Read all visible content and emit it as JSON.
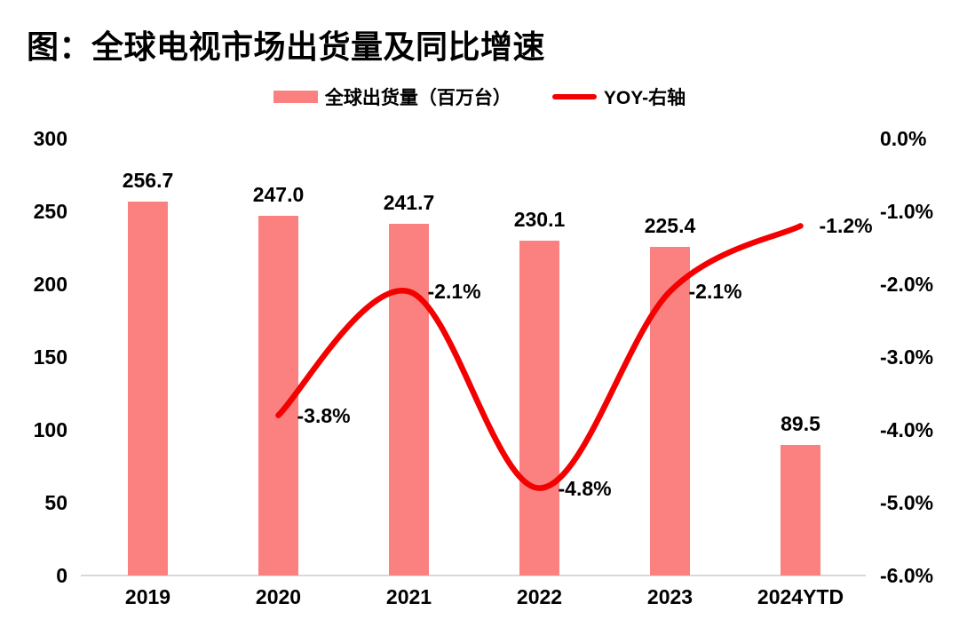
{
  "title": "图：全球电视市场出货量及同比增速",
  "legend": [
    {
      "label": "全球出货量（百万台）",
      "swatch": "bar-swatch"
    },
    {
      "label": "YOY-右轴",
      "swatch": "line-swatch"
    }
  ],
  "colors": {
    "bar": "#FB8181",
    "line": "#F40000",
    "axis_line": "#D9D9D9",
    "text": "#000000",
    "background": "#FFFFFF"
  },
  "chart_data": {
    "type": "bar",
    "subtype": "bar+line-dual-axis",
    "title": "图：全球电视市场出货量及同比增速",
    "categories": [
      "2019",
      "2020",
      "2021",
      "2022",
      "2023",
      "2024YTD"
    ],
    "series": [
      {
        "name": "全球出货量（百万台）",
        "type": "bar",
        "axis": "left",
        "values": [
          256.7,
          247.0,
          241.7,
          230.1,
          225.4,
          89.5
        ],
        "labels": [
          "256.7",
          "247.0",
          "241.7",
          "230.1",
          "225.4",
          "89.5"
        ]
      },
      {
        "name": "YOY-右轴",
        "type": "line",
        "axis": "right",
        "values": [
          null,
          -3.8,
          -2.1,
          -4.8,
          -2.1,
          -1.2
        ],
        "labels": [
          null,
          "-3.8%",
          "-2.1%",
          "-4.8%",
          "-2.1%",
          "-1.2%"
        ]
      }
    ],
    "left_axis": {
      "min": 0,
      "max": 300,
      "ticks": [
        "300",
        "250",
        "200",
        "150",
        "100",
        "50",
        "0"
      ]
    },
    "right_axis": {
      "min": -6.0,
      "max": 0.0,
      "ticks": [
        "0.0%",
        "-1.0%",
        "-2.0%",
        "-3.0%",
        "-4.0%",
        "-5.0%",
        "-6.0%"
      ]
    },
    "grid": false,
    "legend_position": "top-center",
    "data_labels": true
  }
}
